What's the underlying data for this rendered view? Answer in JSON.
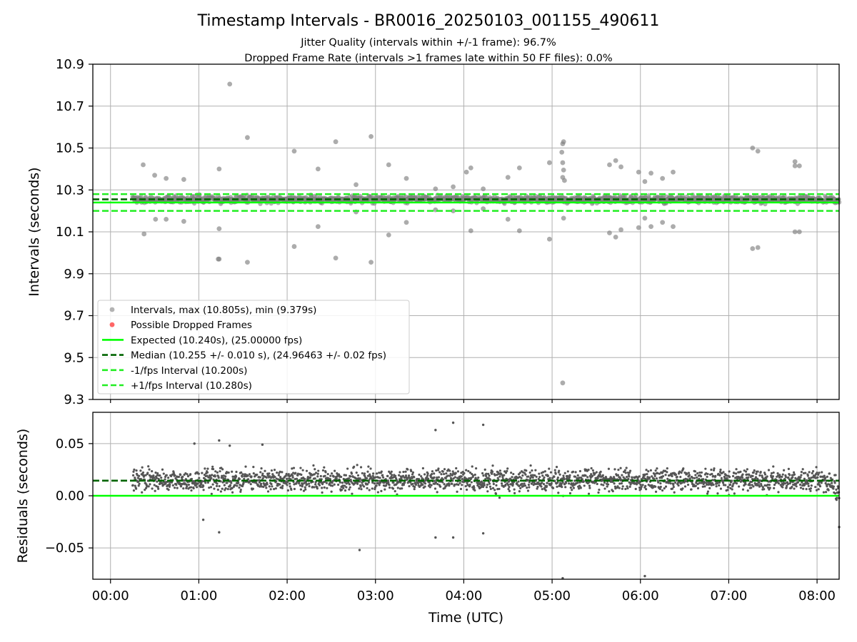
{
  "title": "Timestamp Intervals - BR0016_20250103_001155_490611",
  "subtitle_1": "Jitter Quality (intervals within +/-1 frame): 96.7%",
  "subtitle_2": "Dropped Frame Rate (intervals >1 frames late within 50 FF files): 0.0%",
  "colors": {
    "interval_points": "#808080",
    "dropped_points": "#ff0000",
    "expected_line": "#00ff00",
    "median_line": "#006400",
    "interval_bounds": "#22ee22",
    "residual_points": "#555555",
    "grid": "#b0b0b0"
  },
  "chart_data": [
    {
      "id": "intervals",
      "type": "scatter",
      "ylabel": "Intervals (seconds)",
      "xlim_hours": [
        -0.2,
        8.25
      ],
      "ylim": [
        9.3,
        10.9
      ],
      "yticks": [
        "10.9",
        "10.7",
        "10.5",
        "10.3",
        "10.1",
        "9.9",
        "9.7",
        "9.5",
        "9.3"
      ],
      "grid": true,
      "legend_position": "lower-left",
      "hlines": [
        {
          "name": "Expected (10.240s), (25.00000 fps)",
          "y": 10.24,
          "style": "solid",
          "color": "#00ff00"
        },
        {
          "name": "Median (10.255 +/- 0.010 s), (24.96463 +/- 0.02 fps)",
          "y": 10.255,
          "style": "dashed",
          "color": "#006400"
        },
        {
          "name": "-1/fps Interval (10.200s)",
          "y": 10.2,
          "style": "dashed",
          "color": "#22ee22"
        },
        {
          "name": "+1/fps Interval (10.280s)",
          "y": 10.28,
          "style": "dashed",
          "color": "#22ee22"
        }
      ],
      "series": [
        {
          "name": "Intervals, max (10.805s), min (9.379s)",
          "summary": {
            "start_hour": 0.25,
            "end_hour": 8.25,
            "typical_value": 10.255,
            "spread": 0.015
          },
          "outliers": [
            [
              0.37,
              10.42
            ],
            [
              0.38,
              10.09
            ],
            [
              0.5,
              10.37
            ],
            [
              0.51,
              10.16
            ],
            [
              0.63,
              10.355
            ],
            [
              0.63,
              10.16
            ],
            [
              0.83,
              10.35
            ],
            [
              0.83,
              10.15
            ],
            [
              1.23,
              10.4
            ],
            [
              1.23,
              10.115
            ],
            [
              1.22,
              9.97
            ],
            [
              1.23,
              9.97
            ],
            [
              1.35,
              10.805
            ],
            [
              1.55,
              10.55
            ],
            [
              1.55,
              9.955
            ],
            [
              2.08,
              10.485
            ],
            [
              2.08,
              10.03
            ],
            [
              2.35,
              10.4
            ],
            [
              2.35,
              10.125
            ],
            [
              2.55,
              10.53
            ],
            [
              2.55,
              9.975
            ],
            [
              2.78,
              10.325
            ],
            [
              2.78,
              10.195
            ],
            [
              2.95,
              10.555
            ],
            [
              2.95,
              9.955
            ],
            [
              3.15,
              10.42
            ],
            [
              3.15,
              10.085
            ],
            [
              3.35,
              10.355
            ],
            [
              3.35,
              10.145
            ],
            [
              3.68,
              10.305
            ],
            [
              3.68,
              10.205
            ],
            [
              3.88,
              10.315
            ],
            [
              3.88,
              10.2
            ],
            [
              4.03,
              10.385
            ],
            [
              4.08,
              10.405
            ],
            [
              4.08,
              10.105
            ],
            [
              4.22,
              10.305
            ],
            [
              4.22,
              10.21
            ],
            [
              4.5,
              10.36
            ],
            [
              4.5,
              10.16
            ],
            [
              4.63,
              10.405
            ],
            [
              4.63,
              10.105
            ],
            [
              4.97,
              10.43
            ],
            [
              4.97,
              10.065
            ],
            [
              5.12,
              10.52
            ],
            [
              5.13,
              10.53
            ],
            [
              5.11,
              10.48
            ],
            [
              5.12,
              10.43
            ],
            [
              5.13,
              10.395
            ],
            [
              5.12,
              10.36
            ],
            [
              5.14,
              10.345
            ],
            [
              5.13,
              10.165
            ],
            [
              5.12,
              9.379
            ],
            [
              5.65,
              10.42
            ],
            [
              5.65,
              10.095
            ],
            [
              5.72,
              10.44
            ],
            [
              5.72,
              10.075
            ],
            [
              5.78,
              10.41
            ],
            [
              5.78,
              10.11
            ],
            [
              5.98,
              10.385
            ],
            [
              5.98,
              10.12
            ],
            [
              6.05,
              10.34
            ],
            [
              6.05,
              10.165
            ],
            [
              6.12,
              10.38
            ],
            [
              6.12,
              10.125
            ],
            [
              6.25,
              10.355
            ],
            [
              6.25,
              10.145
            ],
            [
              6.37,
              10.385
            ],
            [
              6.37,
              10.125
            ],
            [
              7.27,
              10.5
            ],
            [
              7.27,
              10.02
            ],
            [
              7.33,
              10.485
            ],
            [
              7.33,
              10.025
            ],
            [
              7.75,
              10.435
            ],
            [
              7.75,
              10.415
            ],
            [
              7.75,
              10.1
            ],
            [
              7.8,
              10.415
            ],
            [
              7.8,
              10.1
            ]
          ]
        },
        {
          "name": "Possible Dropped Frames",
          "values": []
        }
      ]
    },
    {
      "id": "residuals",
      "type": "scatter",
      "xlabel": "Time (UTC)",
      "ylabel": "Residuals (seconds)",
      "xlim_hours": [
        -0.2,
        8.25
      ],
      "ylim": [
        -0.08,
        0.08
      ],
      "yticks": [
        "0.05",
        "0.00",
        "−0.05"
      ],
      "ytick_values": [
        0.05,
        0.0,
        -0.05
      ],
      "xtick_labels": [
        "00:00",
        "01:00",
        "02:00",
        "03:00",
        "04:00",
        "05:00",
        "06:00",
        "07:00",
        "08:00"
      ],
      "grid": true,
      "hlines": [
        {
          "y": 0.0,
          "style": "solid",
          "color": "#00ff00"
        },
        {
          "y": 0.0145,
          "style": "dashed",
          "color": "#006400"
        }
      ],
      "summary": {
        "start_hour": 0.25,
        "end_hour": 8.25,
        "center": 0.015,
        "spread": 0.01
      },
      "outliers": [
        [
          3.68,
          0.063
        ],
        [
          3.88,
          0.07
        ],
        [
          4.22,
          0.068
        ],
        [
          2.82,
          -0.052
        ],
        [
          3.68,
          -0.04
        ],
        [
          3.88,
          -0.04
        ],
        [
          4.22,
          -0.036
        ],
        [
          5.12,
          -0.079
        ],
        [
          6.05,
          -0.077
        ],
        [
          1.23,
          -0.035
        ],
        [
          1.23,
          0.053
        ],
        [
          1.05,
          -0.023
        ],
        [
          8.25,
          -0.03
        ],
        [
          1.35,
          0.048
        ],
        [
          1.72,
          0.049
        ],
        [
          0.95,
          0.05
        ]
      ]
    }
  ]
}
